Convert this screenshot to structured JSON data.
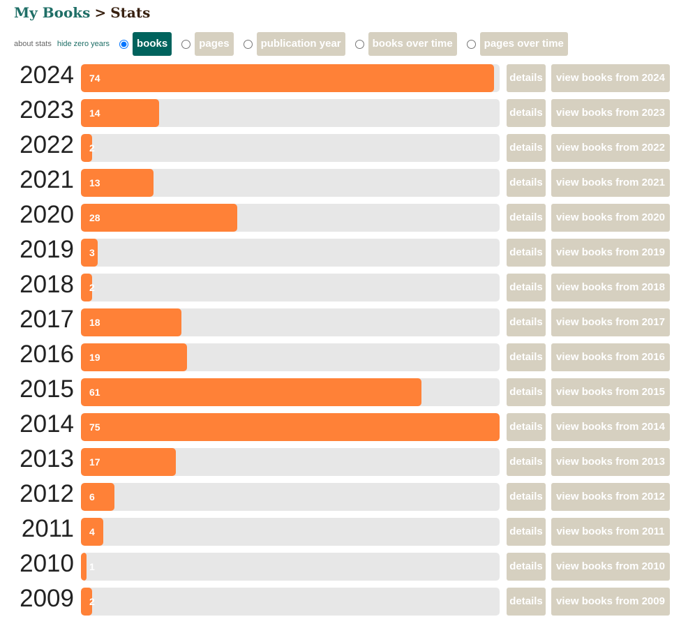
{
  "breadcrumb": {
    "root": "My Books",
    "separator": ">",
    "current": "Stats"
  },
  "toolbar": {
    "about": "about stats",
    "hide_zero": "hide zero years",
    "modes": [
      {
        "label": "books",
        "selected": true
      },
      {
        "label": "pages",
        "selected": false
      },
      {
        "label": "publication year",
        "selected": false
      },
      {
        "label": "books over time",
        "selected": false
      },
      {
        "label": "pages over time",
        "selected": false
      }
    ]
  },
  "chart_data": {
    "type": "bar",
    "orientation": "horizontal",
    "max": 75,
    "rows": [
      {
        "year": "2024",
        "value": 74,
        "details": "details",
        "view": "view books from 2024"
      },
      {
        "year": "2023",
        "value": 14,
        "details": "details",
        "view": "view books from 2023"
      },
      {
        "year": "2022",
        "value": 2,
        "details": "details",
        "view": "view books from 2022"
      },
      {
        "year": "2021",
        "value": 13,
        "details": "details",
        "view": "view books from 2021"
      },
      {
        "year": "2020",
        "value": 28,
        "details": "details",
        "view": "view books from 2020"
      },
      {
        "year": "2019",
        "value": 3,
        "details": "details",
        "view": "view books from 2019"
      },
      {
        "year": "2018",
        "value": 2,
        "details": "details",
        "view": "view books from 2018"
      },
      {
        "year": "2017",
        "value": 18,
        "details": "details",
        "view": "view books from 2017"
      },
      {
        "year": "2016",
        "value": 19,
        "details": "details",
        "view": "view books from 2016"
      },
      {
        "year": "2015",
        "value": 61,
        "details": "details",
        "view": "view books from 2015"
      },
      {
        "year": "2014",
        "value": 75,
        "details": "details",
        "view": "view books from 2014"
      },
      {
        "year": "2013",
        "value": 17,
        "details": "details",
        "view": "view books from 2013"
      },
      {
        "year": "2012",
        "value": 6,
        "details": "details",
        "view": "view books from 2012"
      },
      {
        "year": "2011",
        "value": 4,
        "details": "details",
        "view": "view books from 2011"
      },
      {
        "year": "2010",
        "value": 1,
        "details": "details",
        "view": "view books from 2010"
      },
      {
        "year": "2009",
        "value": 2,
        "details": "details",
        "view": "view books from 2009"
      }
    ]
  },
  "colors": {
    "bar": "#ff8137",
    "track": "#e7e7e7",
    "button": "#d6d0c0",
    "active": "#00635d",
    "link": "#1e6e66"
  }
}
